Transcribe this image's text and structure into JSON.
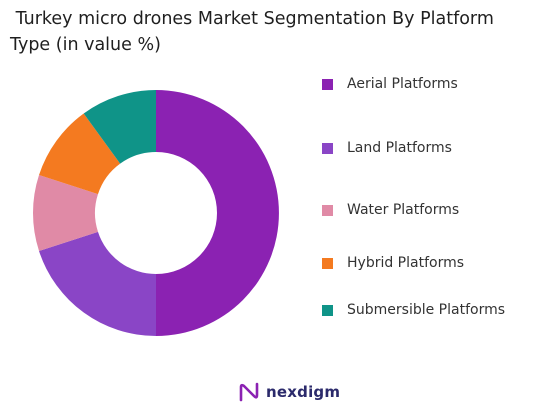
{
  "chart_data": {
    "type": "pie",
    "variant": "donut",
    "title": " Turkey micro drones Market Segmentation By Platform Type (in value %)",
    "legend_position": "right",
    "slices": [
      {
        "name": "Aerial Platforms",
        "value": 50,
        "color": "#8b22b2"
      },
      {
        "name": "Land Platforms",
        "value": 20,
        "color": "#8a45c6"
      },
      {
        "name": "Water Platforms",
        "value": 10,
        "color": "#e08aa6"
      },
      {
        "name": "Hybrid Platforms",
        "value": 10,
        "color": "#f47a20"
      },
      {
        "name": "Submersible Platforms",
        "value": 10,
        "color": "#0f9488"
      }
    ]
  },
  "brand": {
    "name": "nexdigm",
    "color": "#2b2a6b",
    "icon": "nexdigm-logo-icon"
  }
}
